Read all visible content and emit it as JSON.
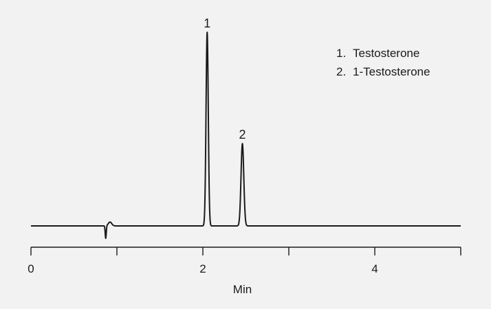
{
  "chart_data": {
    "type": "line",
    "title": "",
    "xlabel": "Min",
    "ylabel": "",
    "xlim": [
      0,
      5
    ],
    "ylim": [
      0,
      100
    ],
    "x_ticks_major": [
      0,
      2,
      4
    ],
    "x_ticks_minor": [
      1,
      3,
      5
    ],
    "x_tick_labels": [
      "0",
      "2",
      "4"
    ],
    "grid": false,
    "legend_position": "top-right",
    "line_color": "#1a1a1a",
    "baseline": 0,
    "disturbance": {
      "time": 0.87,
      "dip": -6.5,
      "bump": 2
    },
    "peaks": [
      {
        "label": "1",
        "name": "Testosterone",
        "time": 2.05,
        "height": 100,
        "width": 0.013
      },
      {
        "label": "2",
        "name": "1-Testosterone",
        "time": 2.46,
        "height": 42.5,
        "width": 0.016
      }
    ],
    "legend": [
      {
        "number": "1.",
        "text": "Testosterone"
      },
      {
        "number": "2.",
        "text": "1-Testosterone"
      }
    ]
  }
}
